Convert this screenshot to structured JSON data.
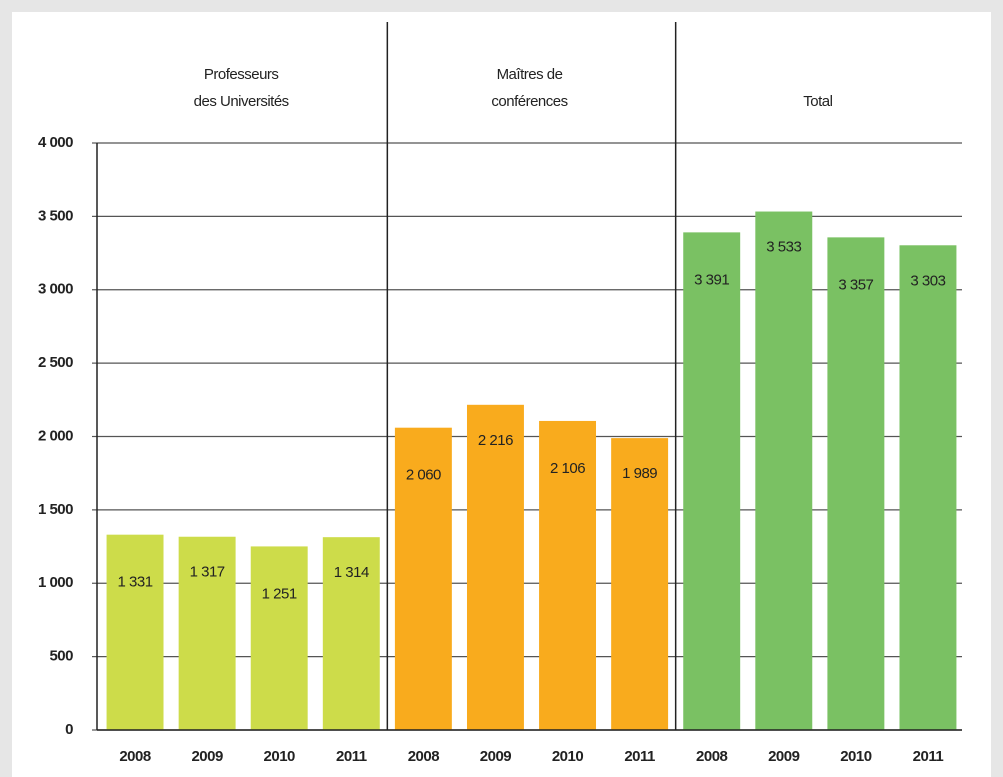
{
  "chart_data": {
    "type": "bar",
    "categories": [
      "2008",
      "2009",
      "2010",
      "2011"
    ],
    "series": [
      {
        "name": [
          "Professeurs",
          "des Universités"
        ],
        "color": "#cddc4a",
        "values": [
          1331,
          1317,
          1251,
          1314
        ],
        "value_labels": [
          "1 331",
          "1 317",
          "1 251",
          "1 314"
        ]
      },
      {
        "name": [
          "Maîtres de",
          "conférences"
        ],
        "color": "#f9ab1d",
        "values": [
          2060,
          2216,
          2106,
          1989
        ],
        "value_labels": [
          "2 060",
          "2 216",
          "2 106",
          "1 989"
        ]
      },
      {
        "name": [
          "Total"
        ],
        "color": "#7ac163",
        "values": [
          3391,
          3533,
          3357,
          3303
        ],
        "value_labels": [
          "3 391",
          "3 533",
          "3 357",
          "3 303"
        ]
      }
    ],
    "ylim": [
      0,
      4000
    ],
    "yticks": [
      0,
      500,
      {
        "value": 1000,
        "label": "1 000"
      },
      {
        "value": 1500,
        "label": "1 500"
      },
      {
        "value": 2000,
        "label": "2 000"
      },
      {
        "value": 2500,
        "label": "2 500"
      },
      {
        "value": 3000,
        "label": "3 000"
      },
      {
        "value": 3500,
        "label": "3 500"
      },
      {
        "value": 4000,
        "label": "4 000"
      }
    ],
    "grid": true
  }
}
